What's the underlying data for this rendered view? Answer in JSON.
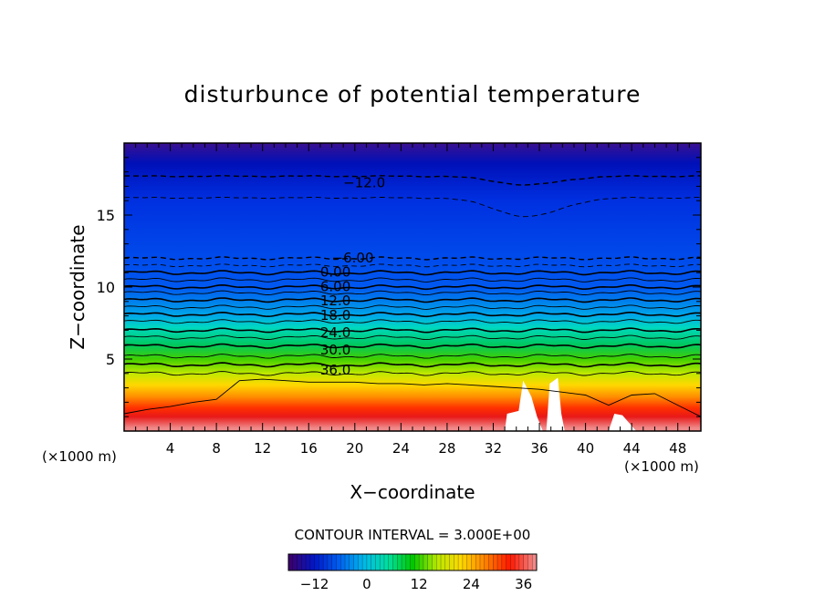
{
  "chart_data": {
    "type": "heatmap",
    "title": "disturbunce of potential temperature",
    "xlabel": "X−coordinate",
    "ylabel": "Z−coordinate",
    "x_unit_left": "(×1000 m)",
    "x_unit_right": "(×1000 m)",
    "xlim": [
      0,
      50
    ],
    "ylim": [
      0,
      20
    ],
    "x_ticks": [
      4,
      8,
      12,
      16,
      20,
      24,
      28,
      32,
      36,
      40,
      44,
      48
    ],
    "y_ticks": [
      5,
      10,
      15
    ],
    "contour_interval_text": "CONTOUR INTERVAL = 3.000E+00",
    "contour_labels": [
      {
        "text": "−12.0",
        "x": 19,
        "z": 17.3
      },
      {
        "text": "−6.00",
        "x": 18,
        "z": 12.1
      },
      {
        "text": "0.00",
        "x": 17,
        "z": 11.1
      },
      {
        "text": "6.00",
        "x": 17,
        "z": 10.1
      },
      {
        "text": "12.0",
        "x": 17,
        "z": 9.1
      },
      {
        "text": "18.0",
        "x": 17,
        "z": 8.1
      },
      {
        "text": "24.0",
        "x": 17,
        "z": 6.9
      },
      {
        "text": "30.0",
        "x": 17,
        "z": 5.7
      },
      {
        "text": "36.0",
        "x": 17,
        "z": 4.3
      }
    ],
    "colorbar": {
      "min": -18,
      "max": 39,
      "tick_values": [
        -12,
        0,
        12,
        24,
        36
      ],
      "tick_labels": [
        "−12",
        "0",
        "12",
        "24",
        "36"
      ],
      "stops": [
        "#3a0070",
        "#0018c8",
        "#0060f0",
        "#00b8e8",
        "#00e0a0",
        "#00c800",
        "#b8e800",
        "#ffd800",
        "#ff8000",
        "#ff1800",
        "#f08888"
      ]
    },
    "field_colors": [
      "#3a1090",
      "#0010b8",
      "#0030e0",
      "#0058f0",
      "#00a8e8",
      "#00d8c0",
      "#00c860",
      "#40d000",
      "#c0e800",
      "#ffd800",
      "#ff9000",
      "#ff3000",
      "#e81818",
      "#f08a8a"
    ],
    "missing_color": "#ffffff"
  }
}
